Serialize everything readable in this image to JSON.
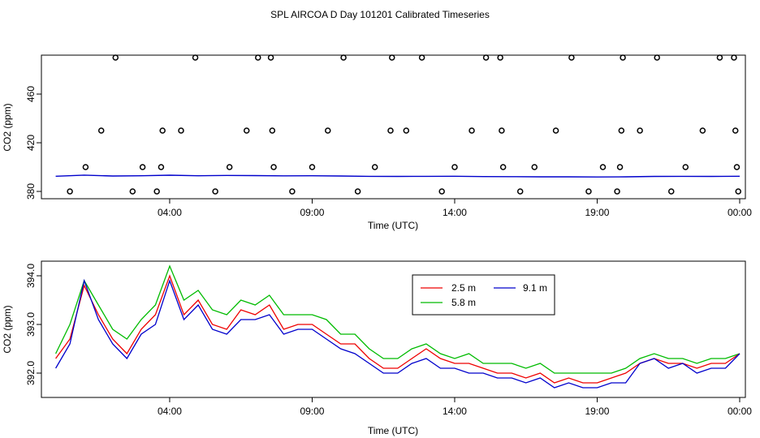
{
  "title": "SPL AIRCOA D  Day 101201  Calibrated Timeseries",
  "chart_data": [
    {
      "type": "scatter",
      "xlabel": "Time (UTC)",
      "ylabel": "CO2 (ppm)",
      "xlim": [
        -0.5,
        24.2
      ],
      "ylim": [
        374,
        492
      ],
      "xticks": [
        4,
        9,
        14,
        19,
        24
      ],
      "xtick_labels": [
        "04:00",
        "09:00",
        "14:00",
        "19:00",
        "00:00"
      ],
      "yticks": [
        380,
        420,
        460
      ],
      "ytick_labels": [
        "380",
        "420",
        "460"
      ],
      "points_x": [
        0.5,
        1.05,
        1.6,
        2.1,
        2.7,
        3.05,
        3.55,
        3.7,
        3.75,
        4.4,
        4.9,
        5.6,
        6.1,
        6.7,
        7.1,
        7.55,
        7.6,
        7.65,
        8.3,
        9.0,
        9.55,
        10.1,
        10.6,
        11.2,
        11.75,
        11.8,
        12.3,
        12.85,
        13.55,
        14.0,
        14.6,
        15.1,
        15.6,
        15.65,
        15.7,
        16.3,
        16.8,
        17.55,
        18.1,
        18.7,
        19.2,
        19.7,
        19.8,
        19.85,
        19.9,
        20.5,
        21.1,
        21.6,
        22.1,
        22.7,
        23.3,
        23.8,
        23.85,
        23.9,
        23.95
      ],
      "points_y": [
        380,
        400,
        430,
        490,
        380,
        400,
        380,
        400,
        430,
        430,
        490,
        380,
        400,
        430,
        490,
        490,
        430,
        400,
        380,
        400,
        430,
        490,
        380,
        400,
        430,
        490,
        430,
        490,
        380,
        400,
        430,
        490,
        490,
        430,
        400,
        380,
        400,
        430,
        490,
        380,
        400,
        380,
        400,
        430,
        490,
        430,
        490,
        380,
        400,
        430,
        490,
        490,
        430,
        400,
        380
      ],
      "line_series": {
        "name": "Calibrated CO2 (blue)",
        "x": [
          0.0,
          1.0,
          2.0,
          3.0,
          4.0,
          5.0,
          6.0,
          7.0,
          8.0,
          9.0,
          10.0,
          11.0,
          12.0,
          13.0,
          14.0,
          15.0,
          16.0,
          17.0,
          18.0,
          19.0,
          20.0,
          21.0,
          22.0,
          23.0,
          24.0
        ],
        "y": [
          392.5,
          393.4,
          392.7,
          392.9,
          393.3,
          392.9,
          393.1,
          393.0,
          392.8,
          392.9,
          392.7,
          392.4,
          392.3,
          392.4,
          392.5,
          392.2,
          392.1,
          392.0,
          392.0,
          391.9,
          392.0,
          392.3,
          392.4,
          392.3,
          392.5
        ]
      }
    },
    {
      "type": "line",
      "xlabel": "Time (UTC)",
      "ylabel": "CO2 (ppm)",
      "xlim": [
        -0.5,
        24.2
      ],
      "ylim": [
        391.5,
        394.3
      ],
      "xticks": [
        4,
        9,
        14,
        19,
        24
      ],
      "xtick_labels": [
        "04:00",
        "09:00",
        "14:00",
        "19:00",
        "00:00"
      ],
      "yticks": [
        392.0,
        393.0,
        394.0
      ],
      "ytick_labels": [
        "392.0",
        "393.0",
        "394.0"
      ],
      "legend": [
        "2.5 m",
        "9.1 m",
        "5.8 m"
      ],
      "legend_location": "center",
      "x": [
        0.0,
        0.5,
        1.0,
        1.5,
        2.0,
        2.5,
        3.0,
        3.5,
        4.0,
        4.5,
        5.0,
        5.5,
        6.0,
        6.5,
        7.0,
        7.5,
        8.0,
        8.5,
        9.0,
        9.5,
        10.0,
        10.5,
        11.0,
        11.5,
        12.0,
        12.5,
        13.0,
        13.5,
        14.0,
        14.5,
        15.0,
        15.5,
        16.0,
        16.5,
        17.0,
        17.5,
        18.0,
        18.5,
        19.0,
        19.5,
        20.0,
        20.5,
        21.0,
        21.5,
        22.0,
        22.5,
        23.0,
        23.5,
        24.0
      ],
      "series": [
        {
          "name": "2.5 m",
          "color": "#ee0000",
          "values": [
            392.3,
            392.7,
            393.8,
            393.2,
            392.7,
            392.4,
            392.9,
            393.2,
            394.0,
            393.2,
            393.5,
            393.0,
            392.9,
            393.3,
            393.2,
            393.4,
            392.9,
            393.0,
            393.0,
            392.8,
            392.6,
            392.6,
            392.3,
            392.1,
            392.1,
            392.3,
            392.5,
            392.3,
            392.2,
            392.2,
            392.1,
            392.0,
            392.0,
            391.9,
            392.0,
            391.8,
            391.9,
            391.8,
            391.8,
            391.9,
            392.0,
            392.2,
            392.3,
            392.2,
            392.2,
            392.1,
            392.2,
            392.2,
            392.4
          ]
        },
        {
          "name": "9.1 m",
          "color": "#0000cc",
          "values": [
            392.1,
            392.6,
            393.9,
            393.1,
            392.6,
            392.3,
            392.8,
            393.0,
            393.9,
            393.1,
            393.4,
            392.9,
            392.8,
            393.1,
            393.1,
            393.2,
            392.8,
            392.9,
            392.9,
            392.7,
            392.5,
            392.4,
            392.2,
            392.0,
            392.0,
            392.2,
            392.3,
            392.1,
            392.1,
            392.0,
            392.0,
            391.9,
            391.9,
            391.8,
            391.9,
            391.7,
            391.8,
            391.7,
            391.7,
            391.8,
            391.8,
            392.2,
            392.3,
            392.1,
            392.2,
            392.0,
            392.1,
            392.1,
            392.4
          ]
        },
        {
          "name": "5.8 m",
          "color": "#00bb00",
          "values": [
            392.4,
            393.0,
            393.9,
            393.4,
            392.9,
            392.7,
            393.1,
            393.4,
            394.2,
            393.5,
            393.7,
            393.3,
            393.2,
            393.5,
            393.4,
            393.6,
            393.2,
            393.2,
            393.2,
            393.1,
            392.8,
            392.8,
            392.5,
            392.3,
            392.3,
            392.5,
            392.6,
            392.4,
            392.3,
            392.4,
            392.2,
            392.2,
            392.2,
            392.1,
            392.2,
            392.0,
            392.0,
            392.0,
            392.0,
            392.0,
            392.1,
            392.3,
            392.4,
            392.3,
            392.3,
            392.2,
            392.3,
            392.3,
            392.4
          ]
        }
      ]
    }
  ]
}
